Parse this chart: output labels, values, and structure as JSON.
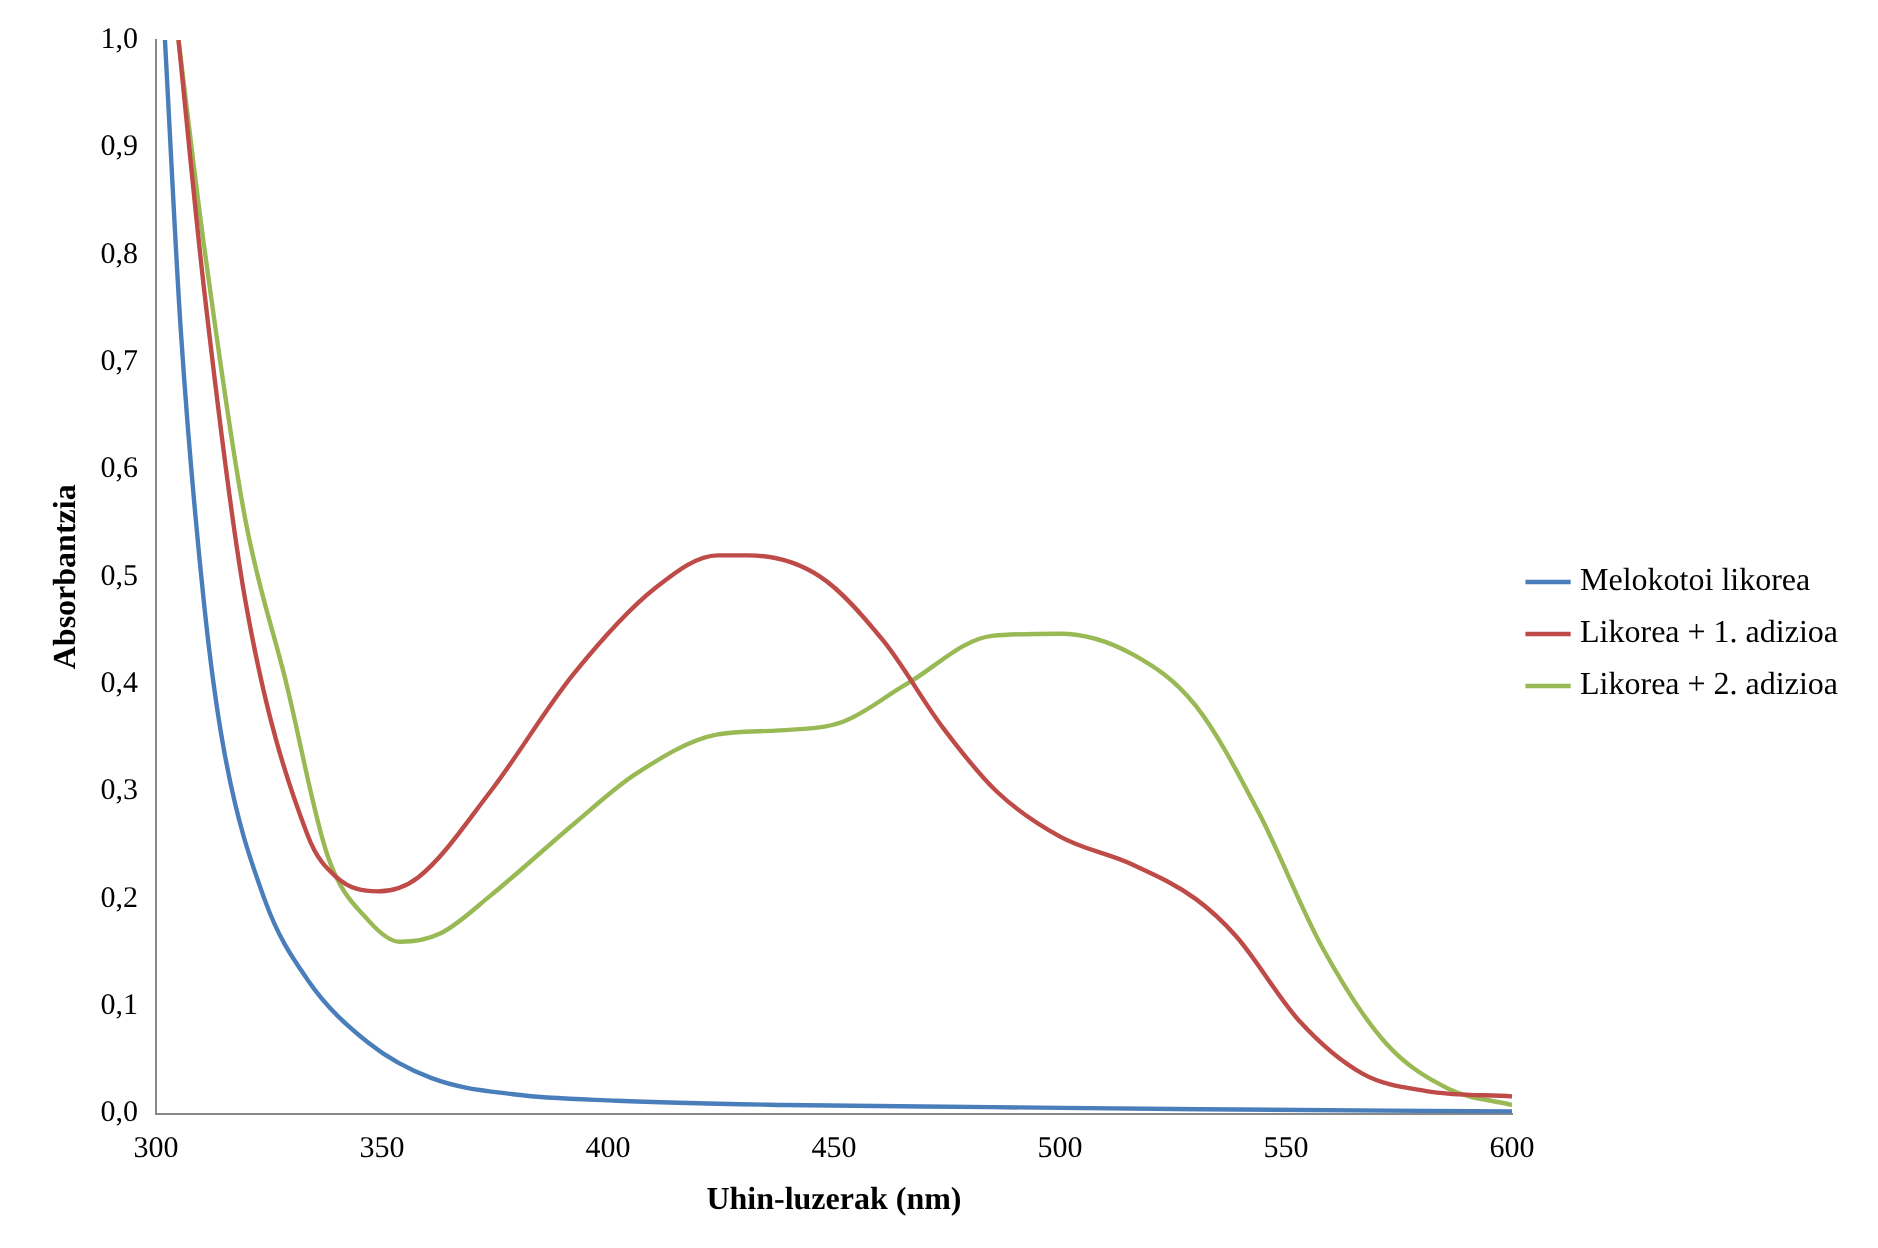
{
  "chart_data": {
    "type": "line",
    "xlabel": "Uhin-luzerak (nm)",
    "ylabel": "Absorbantzia",
    "xlim": [
      300,
      600
    ],
    "xticks": [
      300,
      350,
      400,
      450,
      500,
      550,
      600
    ],
    "ylim": [
      0,
      1
    ],
    "yticks": [
      {
        "value": 0,
        "label": "0,0"
      },
      {
        "value": 0.1,
        "label": "0,1"
      },
      {
        "value": 0.2,
        "label": "0,2"
      },
      {
        "value": 0.3,
        "label": "0,3"
      },
      {
        "value": 0.4,
        "label": "0,4"
      },
      {
        "value": 0.5,
        "label": "0,5"
      },
      {
        "value": 0.6,
        "label": "0,6"
      },
      {
        "value": 0.7,
        "label": "0,7"
      },
      {
        "value": 0.8,
        "label": "0,8"
      },
      {
        "value": 0.9,
        "label": "0,9"
      },
      {
        "value": 1,
        "label": "1,0"
      }
    ],
    "grid": false,
    "legend": "right",
    "marker": "none",
    "line_style": "solid",
    "series": [
      {
        "name": "Melokotoi likorea",
        "color": "#4a7ebb",
        "x": [
          302,
          305.5,
          310.6,
          315,
          324,
          333.5,
          347,
          361,
          379,
          402,
          439,
          485,
          531,
          600
        ],
        "values": [
          1.0,
          0.73,
          0.477,
          0.34,
          0.2,
          0.125,
          0.066,
          0.033,
          0.018,
          0.012,
          0.008,
          0.006,
          0.004,
          0.002
        ]
      },
      {
        "name": "Likorea + 1. adizioa",
        "color": "#be4b48",
        "x": [
          305,
          310.6,
          319.7,
          333.5,
          340,
          349,
          358,
          374,
          392.5,
          410.6,
          424.3,
          431,
          447,
          461,
          474,
          486,
          500,
          516,
          530,
          539,
          553,
          567,
          581,
          600
        ],
        "values": [
          1.0,
          0.77,
          0.48,
          0.26,
          0.22,
          0.207,
          0.22,
          0.3,
          0.41,
          0.49,
          0.52,
          0.52,
          0.5,
          0.44,
          0.36,
          0.3,
          0.258,
          0.232,
          0.2,
          0.165,
          0.086,
          0.037,
          0.021,
          0.016
        ]
      },
      {
        "name": "Likorea + 2. adizioa",
        "color": "#98b954",
        "x": [
          305,
          310.6,
          319.7,
          328.9,
          338,
          347,
          354,
          363,
          374,
          392.5,
          406,
          424,
          438,
          452,
          466,
          485,
          500,
          516,
          530,
          544,
          558,
          572,
          586,
          600
        ],
        "values": [
          1.0,
          0.81,
          0.555,
          0.4,
          0.24,
          0.18,
          0.16,
          0.168,
          0.203,
          0.27,
          0.316,
          0.353,
          0.357,
          0.365,
          0.4,
          0.445,
          0.447,
          0.428,
          0.38,
          0.28,
          0.155,
          0.066,
          0.023,
          0.008
        ]
      }
    ]
  }
}
